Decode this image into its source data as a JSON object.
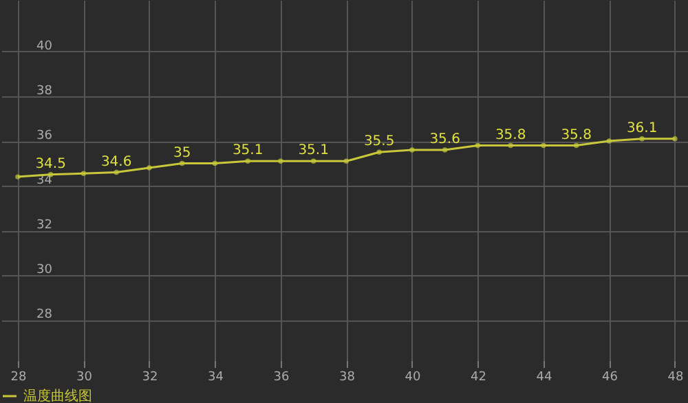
{
  "chart_data": {
    "type": "line",
    "x": [
      28,
      29,
      30,
      31,
      32,
      33,
      34,
      35,
      36,
      37,
      38,
      39,
      40,
      41,
      42,
      43,
      44,
      45,
      46,
      47,
      48
    ],
    "series": [
      {
        "name": "温度曲线图",
        "color": "#c8c83a",
        "values": [
          34.4,
          34.5,
          34.55,
          34.6,
          34.8,
          35,
          35,
          35.1,
          35.1,
          35.1,
          35.1,
          35.5,
          35.6,
          35.6,
          35.8,
          35.8,
          35.8,
          35.8,
          36,
          36.1,
          36.1
        ],
        "value_labels": [
          null,
          "34.5",
          null,
          "34.6",
          null,
          "35",
          null,
          "35.1",
          null,
          "35.1",
          null,
          "35.5",
          null,
          "35.6",
          null,
          "35.8",
          null,
          "35.8",
          null,
          "36.1",
          null
        ]
      }
    ],
    "xlim": [
      27.5,
      48.4
    ],
    "xticks": [
      28,
      30,
      32,
      34,
      36,
      38,
      40,
      42,
      44,
      46,
      48
    ],
    "ylim": [
      26.2,
      42.3
    ],
    "yticks": [
      28,
      30,
      32,
      34,
      36,
      38,
      40
    ],
    "grid": true,
    "legend": "bottom left",
    "marker": "circle",
    "line_style": "solid"
  }
}
